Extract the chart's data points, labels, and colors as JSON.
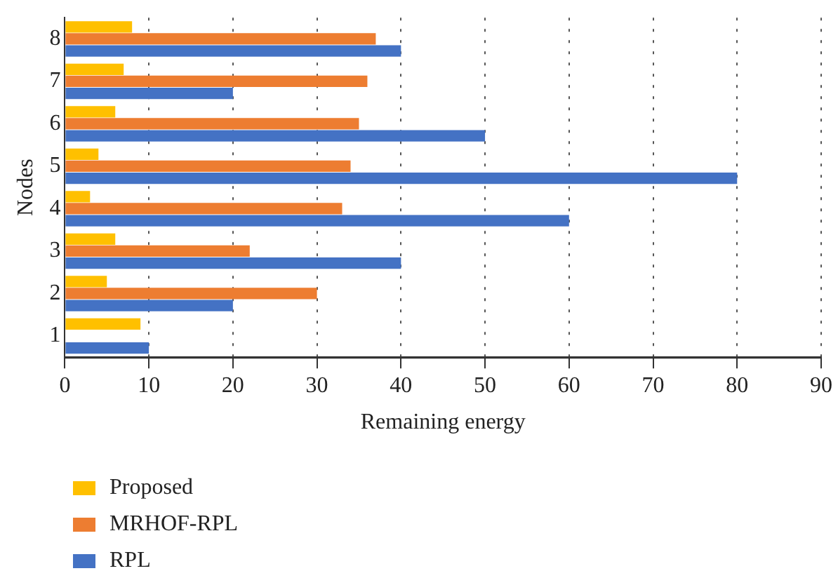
{
  "chart_data": {
    "type": "bar",
    "orientation": "horizontal",
    "xlabel": "Remaining energy",
    "ylabel": "Nodes",
    "categories": [
      "8",
      "7",
      "6",
      "5",
      "4",
      "3",
      "2",
      "1"
    ],
    "series": [
      {
        "name": "Proposed",
        "color": "#ffc000",
        "values": [
          8,
          7,
          6,
          4,
          3,
          6,
          5,
          9
        ]
      },
      {
        "name": "MRHOF-RPL",
        "color": "#ed7d31",
        "values": [
          37,
          36,
          35,
          34,
          33,
          22,
          30,
          null
        ]
      },
      {
        "name": "RPL",
        "color": "#4472c4",
        "values": [
          40,
          20,
          50,
          80,
          60,
          40,
          20,
          10
        ]
      }
    ],
    "xlim": [
      0,
      90
    ],
    "xticks": [
      0,
      10,
      20,
      30,
      40,
      50,
      60,
      70,
      80,
      90
    ],
    "grid": "x",
    "legend": "bottom"
  }
}
